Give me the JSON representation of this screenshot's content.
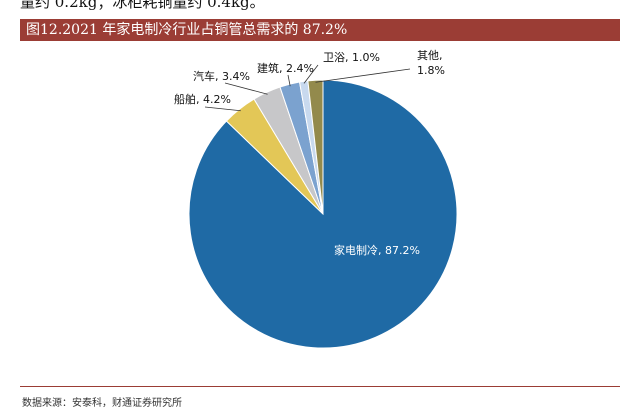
{
  "top_text": "量约 0.2kg；冰柜耗铜量约 0.4kg。",
  "figure_title": "图12.2021 年家电制冷行业占铜管总需求的 87.2%",
  "source": "数据来源：安泰科，财通证券研究所",
  "chart_data": {
    "type": "pie",
    "title": "图12.2021 年家电制冷行业占铜管总需求的 87.2%",
    "start_angle_deg": 0,
    "direction": "clockwise",
    "slices": [
      {
        "label": "家电制冷",
        "value": 87.2,
        "display": "家电制冷, 87.2%",
        "color": "#1f6aa5"
      },
      {
        "label": "船舶",
        "value": 4.2,
        "display": "船舶, 4.2%",
        "color": "#e3c757"
      },
      {
        "label": "汽车",
        "value": 3.4,
        "display": "汽车, 3.4%",
        "color": "#c7c7c9"
      },
      {
        "label": "建筑",
        "value": 2.4,
        "display": "建筑, 2.4%",
        "color": "#7ba2cf"
      },
      {
        "label": "卫浴",
        "value": 1.0,
        "display": "卫浴, 1.0%",
        "color": "#c8d9ee"
      },
      {
        "label": "其他",
        "value": 1.8,
        "display_line1": "其他,",
        "display_line2": "1.8%",
        "color": "#938a4c"
      }
    ],
    "legend": "none"
  }
}
